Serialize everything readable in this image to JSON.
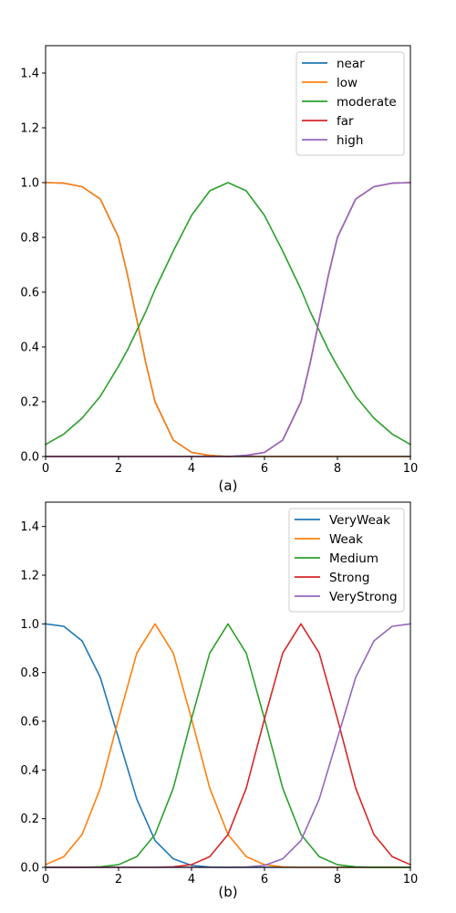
{
  "chart_data": [
    {
      "type": "line",
      "caption": "(a)",
      "xlim": [
        0,
        10
      ],
      "ylim": [
        0,
        1.5
      ],
      "xticks": [
        0,
        2,
        4,
        6,
        8,
        10
      ],
      "yticks": [
        0.0,
        0.2,
        0.4,
        0.6,
        0.8,
        1.0,
        1.2,
        1.4
      ],
      "xtick_labels": [
        "0",
        "2",
        "4",
        "6",
        "8",
        "10"
      ],
      "ytick_labels": [
        "0.0",
        "0.2",
        "0.4",
        "0.6",
        "0.8",
        "1.0",
        "1.2",
        "1.4"
      ],
      "grid": false,
      "legend_position": "top-right",
      "x": [
        0,
        0.5,
        1,
        1.5,
        2,
        2.25,
        2.5,
        2.75,
        3,
        3.5,
        4,
        4.5,
        5,
        5.5,
        6,
        6.5,
        7,
        7.25,
        7.5,
        7.75,
        8,
        8.5,
        9,
        9.5,
        10
      ],
      "series": [
        {
          "name": "near",
          "color": "#1f77b4",
          "values": [
            1.0,
            0.998,
            0.985,
            0.94,
            0.8,
            0.66,
            0.5,
            0.34,
            0.2,
            0.06,
            0.015,
            0.004,
            0.0,
            0.0,
            0.0,
            0.0,
            0.0,
            0.0,
            0.0,
            0.0,
            0.0,
            0.0,
            0.0,
            0.0,
            0.0
          ]
        },
        {
          "name": "low",
          "color": "#ff7f0e",
          "values": [
            1.0,
            0.998,
            0.985,
            0.94,
            0.8,
            0.66,
            0.5,
            0.34,
            0.2,
            0.06,
            0.015,
            0.004,
            0.0,
            0.0,
            0.0,
            0.0,
            0.0,
            0.0,
            0.0,
            0.0,
            0.0,
            0.0,
            0.0,
            0.0,
            0.0
          ]
        },
        {
          "name": "moderate",
          "color": "#2ca02c",
          "values": [
            0.044,
            0.082,
            0.14,
            0.22,
            0.33,
            0.39,
            0.46,
            0.53,
            0.61,
            0.75,
            0.88,
            0.97,
            1.0,
            0.97,
            0.88,
            0.75,
            0.61,
            0.53,
            0.46,
            0.39,
            0.33,
            0.22,
            0.14,
            0.082,
            0.044
          ]
        },
        {
          "name": "far",
          "color": "#d62728",
          "values": [
            0.0,
            0.0,
            0.0,
            0.0,
            0.0,
            0.0,
            0.0,
            0.0,
            0.0,
            0.0,
            0.0,
            0.0,
            0.0,
            0.004,
            0.015,
            0.06,
            0.2,
            0.34,
            0.5,
            0.66,
            0.8,
            0.94,
            0.985,
            0.998,
            1.0
          ]
        },
        {
          "name": "high",
          "color": "#9467bd",
          "values": [
            0.0,
            0.0,
            0.0,
            0.0,
            0.0,
            0.0,
            0.0,
            0.0,
            0.0,
            0.0,
            0.0,
            0.0,
            0.0,
            0.004,
            0.015,
            0.06,
            0.2,
            0.34,
            0.5,
            0.66,
            0.8,
            0.94,
            0.985,
            0.998,
            1.0
          ]
        }
      ]
    },
    {
      "type": "line",
      "caption": "(b)",
      "xlim": [
        0,
        10
      ],
      "ylim": [
        0,
        1.5
      ],
      "xticks": [
        0,
        2,
        4,
        6,
        8,
        10
      ],
      "yticks": [
        0.0,
        0.2,
        0.4,
        0.6,
        0.8,
        1.0,
        1.2,
        1.4
      ],
      "xtick_labels": [
        "0",
        "2",
        "4",
        "6",
        "8",
        "10"
      ],
      "ytick_labels": [
        "0.0",
        "0.2",
        "0.4",
        "0.6",
        "0.8",
        "1.0",
        "1.2",
        "1.4"
      ],
      "grid": false,
      "legend_position": "top-right",
      "x": [
        0,
        0.5,
        1,
        1.5,
        2,
        2.5,
        3,
        3.5,
        4,
        4.5,
        5,
        5.5,
        6,
        6.5,
        7,
        7.5,
        8,
        8.5,
        9,
        9.5,
        10
      ],
      "series": [
        {
          "name": "VeryWeak",
          "color": "#1f77b4",
          "values": [
            1.0,
            0.99,
            0.93,
            0.78,
            0.53,
            0.28,
            0.11,
            0.035,
            0.008,
            0.001,
            0.0,
            0.0,
            0.0,
            0.0,
            0.0,
            0.0,
            0.0,
            0.0,
            0.0,
            0.0,
            0.0
          ]
        },
        {
          "name": "Weak",
          "color": "#ff7f0e",
          "values": [
            0.011,
            0.044,
            0.135,
            0.325,
            0.61,
            0.88,
            1.0,
            0.88,
            0.61,
            0.325,
            0.135,
            0.044,
            0.011,
            0.002,
            0.0,
            0.0,
            0.0,
            0.0,
            0.0,
            0.0,
            0.0
          ]
        },
        {
          "name": "Medium",
          "color": "#2ca02c",
          "values": [
            0.0,
            0.0,
            0.0,
            0.002,
            0.011,
            0.044,
            0.135,
            0.325,
            0.61,
            0.88,
            1.0,
            0.88,
            0.61,
            0.325,
            0.135,
            0.044,
            0.011,
            0.002,
            0.0,
            0.0,
            0.0
          ]
        },
        {
          "name": "Strong",
          "color": "#d62728",
          "values": [
            0.0,
            0.0,
            0.0,
            0.0,
            0.0,
            0.0,
            0.0,
            0.002,
            0.011,
            0.044,
            0.135,
            0.325,
            0.61,
            0.88,
            1.0,
            0.88,
            0.61,
            0.325,
            0.135,
            0.044,
            0.011
          ]
        },
        {
          "name": "VeryStrong",
          "color": "#9467bd",
          "values": [
            0.0,
            0.0,
            0.0,
            0.0,
            0.0,
            0.0,
            0.0,
            0.0,
            0.0,
            0.0,
            0.0,
            0.001,
            0.008,
            0.035,
            0.11,
            0.28,
            0.53,
            0.78,
            0.93,
            0.99,
            1.0
          ]
        }
      ]
    }
  ]
}
